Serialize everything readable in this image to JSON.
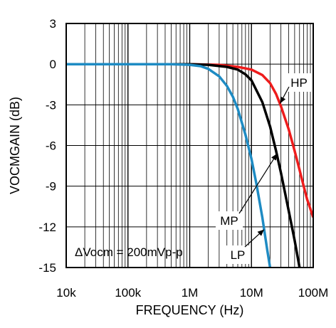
{
  "chart_data": {
    "type": "line",
    "x_scale": "log",
    "xlim": [
      10000,
      100000000
    ],
    "ylim": [
      -15,
      3
    ],
    "grid": true,
    "xlabel": "FREQUENCY (Hz)",
    "ylabel": "VOCMGAIN (dB)",
    "x_tick_labels": [
      {
        "value": 10000,
        "label": "10k"
      },
      {
        "value": 100000,
        "label": "100k"
      },
      {
        "value": 1000000,
        "label": "1M"
      },
      {
        "value": 10000000,
        "label": "10M"
      },
      {
        "value": 100000000,
        "label": "100M"
      }
    ],
    "y_tick_labels": [
      {
        "value": 3,
        "label": "3"
      },
      {
        "value": 0,
        "label": "0"
      },
      {
        "value": -3,
        "label": "-3"
      },
      {
        "value": -6,
        "label": "-6"
      },
      {
        "value": -9,
        "label": "-9"
      },
      {
        "value": -12,
        "label": "-12"
      },
      {
        "value": -15,
        "label": "-15"
      }
    ],
    "series": [
      {
        "name": "HP",
        "color": "#ee1c1c",
        "points": [
          [
            10000,
            0
          ],
          [
            1000000,
            0
          ],
          [
            3000000,
            -0.05
          ],
          [
            6000000,
            -0.2
          ],
          [
            10000000,
            -0.4
          ],
          [
            15000000,
            -0.8
          ],
          [
            20000000,
            -1.4
          ],
          [
            25000000,
            -2.2
          ],
          [
            30000000,
            -3.1
          ],
          [
            40000000,
            -4.8
          ],
          [
            50000000,
            -6.4
          ],
          [
            60000000,
            -7.8
          ],
          [
            70000000,
            -9.0
          ],
          [
            80000000,
            -10.0
          ],
          [
            100000000,
            -11.3
          ]
        ]
      },
      {
        "name": "MP",
        "color": "#000000",
        "points": [
          [
            10000,
            0
          ],
          [
            1000000,
            0
          ],
          [
            2000000,
            -0.05
          ],
          [
            4000000,
            -0.2
          ],
          [
            6000000,
            -0.4
          ],
          [
            8000000,
            -0.75
          ],
          [
            10000000,
            -1.2
          ],
          [
            15000000,
            -2.8
          ],
          [
            20000000,
            -4.6
          ],
          [
            25000000,
            -6.4
          ],
          [
            30000000,
            -8.0
          ],
          [
            40000000,
            -10.8
          ],
          [
            50000000,
            -13.0
          ],
          [
            60000000,
            -15
          ]
        ]
      },
      {
        "name": "LP",
        "color": "#1e8bc3",
        "points": [
          [
            10000,
            0
          ],
          [
            500000,
            0
          ],
          [
            1000000,
            -0.05
          ],
          [
            1500000,
            -0.15
          ],
          [
            2000000,
            -0.35
          ],
          [
            3000000,
            -0.9
          ],
          [
            4000000,
            -1.6
          ],
          [
            5000000,
            -2.4
          ],
          [
            6000000,
            -3.3
          ],
          [
            8000000,
            -5.2
          ],
          [
            10000000,
            -7.0
          ],
          [
            12000000,
            -8.8
          ],
          [
            15000000,
            -11.3
          ],
          [
            18000000,
            -13.7
          ],
          [
            20000000,
            -15
          ]
        ]
      }
    ],
    "annotations": [
      {
        "text": "HP",
        "arrow_to": [
          29000000,
          -2.9
        ]
      },
      {
        "text": "MP",
        "arrow_to": [
          26000000,
          -6.6
        ]
      },
      {
        "text": "LP",
        "arrow_to": [
          16000000,
          -12.2
        ]
      },
      {
        "text": "ΔVocm = 200mVp-p"
      }
    ]
  }
}
